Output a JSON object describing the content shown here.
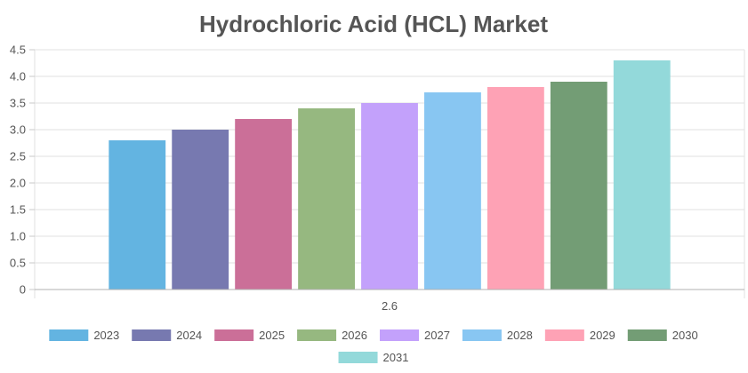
{
  "chart_data": {
    "type": "bar",
    "title": "Hydrochloric Acid (HCL) Market",
    "xlabel": "",
    "ylabel": "",
    "categories": [
      "2.6"
    ],
    "ylim": [
      0,
      4.5
    ],
    "yticks": [
      0,
      0.5,
      1.0,
      1.5,
      2.0,
      2.5,
      3.0,
      3.5,
      4.0,
      4.5
    ],
    "ytick_labels": [
      "0",
      "0.5",
      "1.0",
      "1.5",
      "2.0",
      "2.5",
      "3.0",
      "3.5",
      "4.0",
      "4.5"
    ],
    "grid": true,
    "legend_position": "bottom",
    "series": [
      {
        "name": "2023",
        "values": [
          2.8
        ],
        "color": "#63b4e1"
      },
      {
        "name": "2024",
        "values": [
          3.0
        ],
        "color": "#7779b0"
      },
      {
        "name": "2025",
        "values": [
          3.2
        ],
        "color": "#cb6f98"
      },
      {
        "name": "2026",
        "values": [
          3.4
        ],
        "color": "#96b880"
      },
      {
        "name": "2027",
        "values": [
          3.5
        ],
        "color": "#c3a1fb"
      },
      {
        "name": "2028",
        "values": [
          3.7
        ],
        "color": "#88c6f2"
      },
      {
        "name": "2029",
        "values": [
          3.8
        ],
        "color": "#fea2b5"
      },
      {
        "name": "2030",
        "values": [
          3.9
        ],
        "color": "#739d75"
      },
      {
        "name": "2031",
        "values": [
          4.3
        ],
        "color": "#93d9da"
      }
    ]
  }
}
